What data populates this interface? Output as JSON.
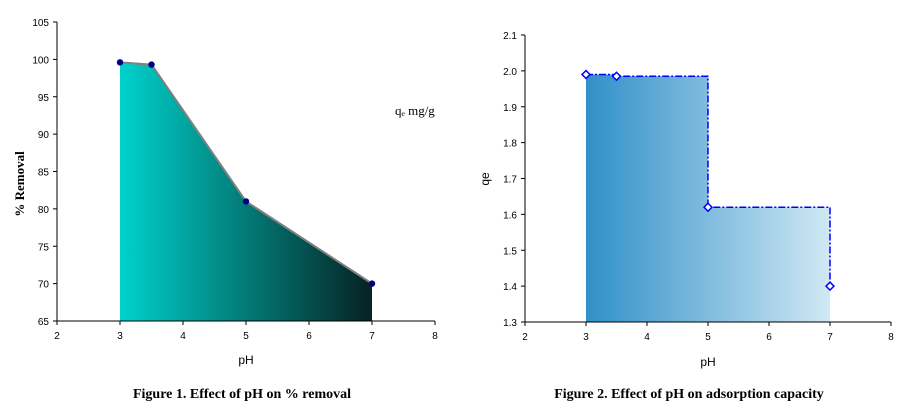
{
  "chart_data": [
    {
      "type": "area",
      "caption": "Figure 1. Effect of pH on % removal",
      "xlabel": "pH",
      "ylabel": "% Removal",
      "annotation": "qₑ mg/g",
      "xlim": [
        2,
        8
      ],
      "ylim": [
        65,
        105
      ],
      "xticks": [
        "2",
        "3",
        "4",
        "5",
        "6",
        "7",
        "8"
      ],
      "yticks": [
        "65",
        "70",
        "75",
        "80",
        "85",
        "90",
        "95",
        "100",
        "105"
      ],
      "series": [
        {
          "x": [
            3,
            3.5,
            5,
            7
          ],
          "y": [
            99.6,
            99.3,
            81.0,
            70.0
          ]
        }
      ],
      "colors": {
        "fill_start": "#00d2cc",
        "fill_end": "#062222",
        "line": "#808080",
        "marker": "#000080"
      }
    },
    {
      "type": "area",
      "caption": "Figure 2. Effect of pH on adsorption capacity",
      "xlabel": "pH",
      "ylabel": "qe",
      "xlim": [
        2,
        8
      ],
      "ylim": [
        1.3,
        2.1
      ],
      "xticks": [
        "2",
        "3",
        "4",
        "5",
        "6",
        "7",
        "8"
      ],
      "yticks": [
        "1.3",
        "1.4",
        "1.5",
        "1.6",
        "1.7",
        "1.8",
        "1.9",
        "2.0",
        "2.1"
      ],
      "step": true,
      "series": [
        {
          "x": [
            3,
            3.5,
            5,
            7
          ],
          "y": [
            1.99,
            1.985,
            1.62,
            1.4
          ]
        }
      ],
      "colors": {
        "fill_start": "#3090c8",
        "fill_end": "#d0e8f4",
        "line": "#0000ff",
        "marker": "#0000ff"
      }
    }
  ]
}
